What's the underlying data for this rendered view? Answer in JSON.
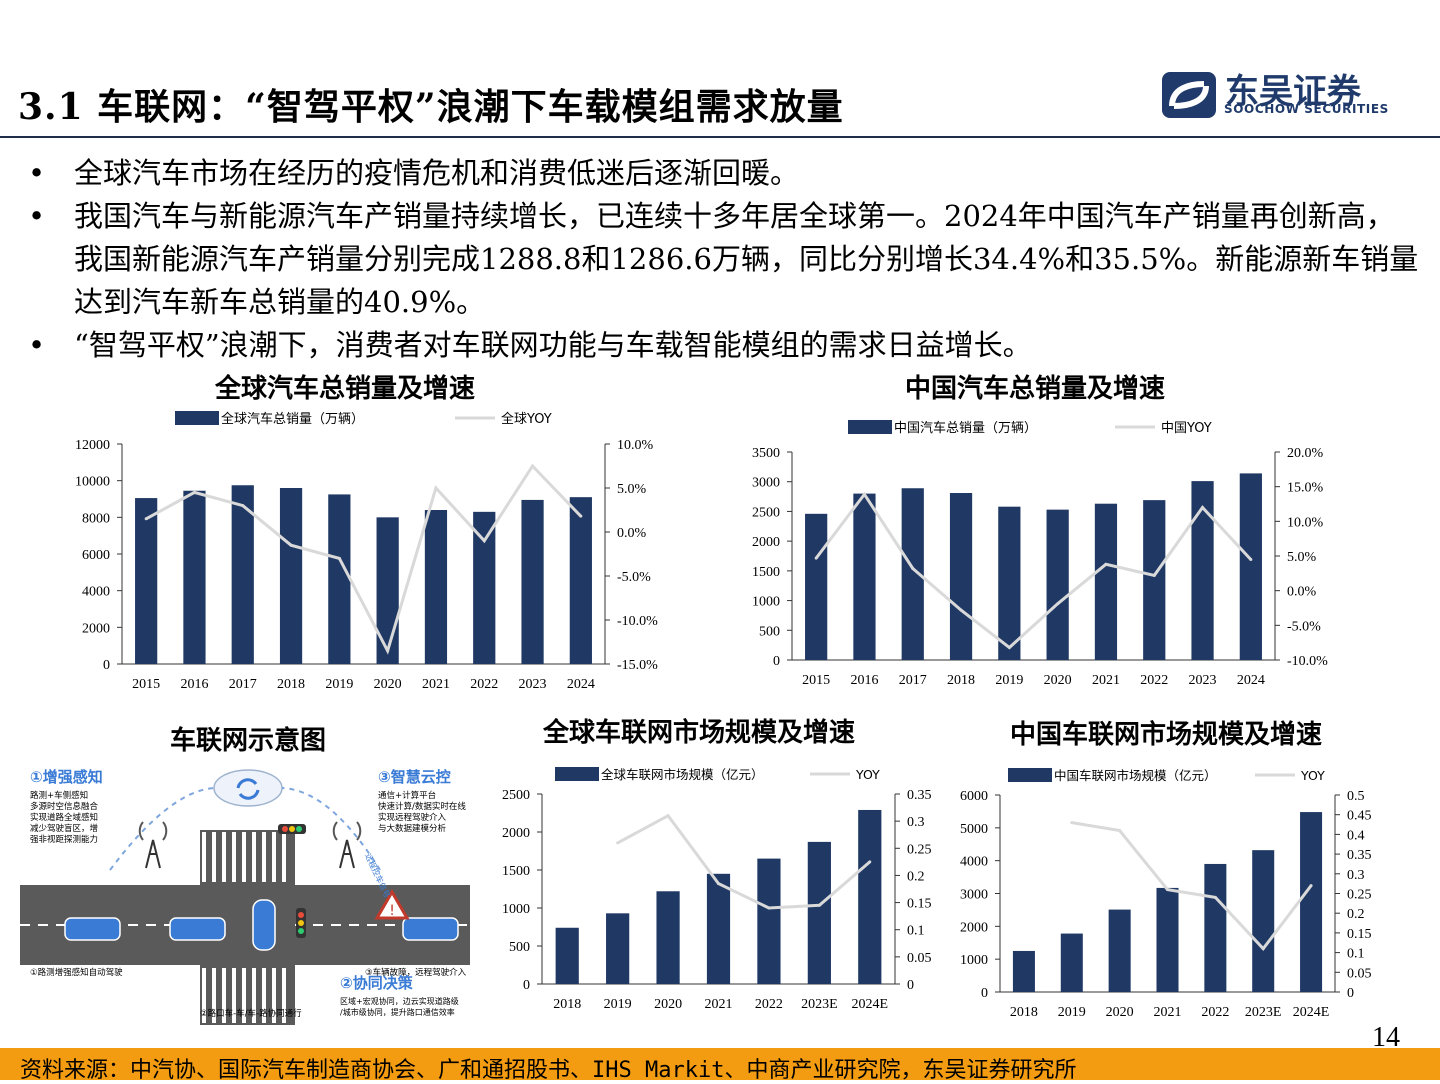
{
  "header": {
    "title": "3.1 车联网：“智驾平权”浪潮下车载模组需求放量",
    "logo_cn": "东吴证券",
    "logo_en": "SOOCHOW SECURITIES"
  },
  "bullets": [
    {
      "symbol": "•",
      "text": "全球汽车市场在经历的疫情危机和消费低迷后逐渐回暖。"
    },
    {
      "symbol": "•",
      "text": "我国汽车与新能源汽车产销量持续增长，已连续十多年居全球第一。2024年中国汽车产销量再创新高，我国新能源汽车产销量分别完成1288.8和1286.6万辆，同比分别增长34.4%和35.5%。新能源新车销量达到汽车新车总销量的40.9%。"
    },
    {
      "symbol": "•",
      "text": "“智驾平权”浪潮下，消费者对车联网功能与车载智能模组的需求日益增长。"
    }
  ],
  "colors": {
    "bar": "#1f3864",
    "line": "#d9d9d9",
    "footer": "#f39c12",
    "brand": "#1f3a6b"
  },
  "chart_data": [
    {
      "type": "bar",
      "title": "全球汽车总销量及增速",
      "categories": [
        "2015",
        "2016",
        "2017",
        "2018",
        "2019",
        "2020",
        "2021",
        "2022",
        "2023",
        "2024"
      ],
      "series": [
        {
          "name": "全球汽车总销量（万辆）",
          "type": "bar",
          "axis": "left",
          "values": [
            9050,
            9450,
            9750,
            9600,
            9250,
            8000,
            8400,
            8300,
            8950,
            9100
          ]
        },
        {
          "name": "全球YOY",
          "type": "line",
          "axis": "right",
          "values": [
            1.5,
            4.5,
            3.0,
            -1.5,
            -3.0,
            -13.5,
            5.0,
            -1.0,
            7.5,
            1.8
          ]
        }
      ],
      "y_left": {
        "min": 0,
        "max": 12000,
        "ticks": [
          "0",
          "2000",
          "4000",
          "6000",
          "8000",
          "10000",
          "12000"
        ]
      },
      "y_right": {
        "min": -15,
        "max": 10,
        "ticks": [
          "-15.0%",
          "-10.0%",
          "-5.0%",
          "0.0%",
          "5.0%",
          "10.0%"
        ]
      }
    },
    {
      "type": "bar",
      "title": "中国汽车总销量及增速",
      "categories": [
        "2015",
        "2016",
        "2017",
        "2018",
        "2019",
        "2020",
        "2021",
        "2022",
        "2023",
        "2024"
      ],
      "series": [
        {
          "name": "中国汽车总销量（万辆）",
          "type": "bar",
          "axis": "left",
          "values": [
            2460,
            2800,
            2890,
            2810,
            2580,
            2530,
            2630,
            2690,
            3010,
            3140
          ]
        },
        {
          "name": "中国YOY",
          "type": "line",
          "axis": "right",
          "values": [
            4.7,
            13.9,
            3.2,
            -2.8,
            -8.2,
            -1.9,
            3.8,
            2.2,
            12.0,
            4.5
          ]
        }
      ],
      "y_left": {
        "min": 0,
        "max": 3500,
        "ticks": [
          "0",
          "500",
          "1000",
          "1500",
          "2000",
          "2500",
          "3000",
          "3500"
        ]
      },
      "y_right": {
        "min": -10,
        "max": 20,
        "ticks": [
          "-10.0%",
          "-5.0%",
          "0.0%",
          "5.0%",
          "10.0%",
          "15.0%",
          "20.0%"
        ]
      }
    },
    {
      "type": "bar",
      "title": "全球车联网市场规模及增速",
      "categories": [
        "2018",
        "2019",
        "2020",
        "2021",
        "2022",
        "2023E",
        "2024E"
      ],
      "series": [
        {
          "name": "全球车联网市场规模（亿元）",
          "type": "bar",
          "axis": "left",
          "values": [
            740,
            930,
            1220,
            1450,
            1650,
            1870,
            2290
          ]
        },
        {
          "name": "YOY",
          "type": "line",
          "axis": "right",
          "values": [
            null,
            0.26,
            0.31,
            0.185,
            0.14,
            0.145,
            0.225
          ]
        }
      ],
      "y_left": {
        "min": 0,
        "max": 2500,
        "ticks": [
          "0",
          "500",
          "1000",
          "1500",
          "2000",
          "2500"
        ]
      },
      "y_right": {
        "min": 0,
        "max": 0.35,
        "ticks": [
          "0",
          "0.05",
          "0.1",
          "0.15",
          "0.2",
          "0.25",
          "0.3",
          "0.35"
        ]
      }
    },
    {
      "type": "bar",
      "title": "中国车联网市场规模及增速",
      "categories": [
        "2018",
        "2019",
        "2020",
        "2021",
        "2022",
        "2023E",
        "2024E"
      ],
      "series": [
        {
          "name": "中国车联网市场规模（亿元）",
          "type": "bar",
          "axis": "left",
          "values": [
            1250,
            1780,
            2510,
            3170,
            3900,
            4320,
            5480
          ]
        },
        {
          "name": "YOY",
          "type": "line",
          "axis": "right",
          "values": [
            null,
            0.43,
            0.41,
            0.26,
            0.24,
            0.11,
            0.27
          ]
        }
      ],
      "y_left": {
        "min": 0,
        "max": 6000,
        "ticks": [
          "0",
          "1000",
          "2000",
          "3000",
          "4000",
          "5000",
          "6000"
        ]
      },
      "y_right": {
        "min": 0,
        "max": 0.5,
        "ticks": [
          "0",
          "0.05",
          "0.1",
          "0.15",
          "0.2",
          "0.25",
          "0.3",
          "0.35",
          "0.4",
          "0.45",
          "0.5"
        ]
      }
    }
  ],
  "diagram": {
    "title": "车联网示意图",
    "boxes": [
      {
        "num": "①",
        "heading": "增强感知",
        "lines": [
          "路测+车侧感知",
          "多源时空信息融合",
          "实现道路全域感知",
          "减少驾驶盲区，增",
          "强非视距探测能力"
        ]
      },
      {
        "num": "③",
        "heading": "智慧云控",
        "lines": [
          "通信+计算平台",
          "快速计算/数据实时在线",
          "实现远程驾驶介入",
          "与大数据建模分析"
        ]
      },
      {
        "num": "②",
        "heading": "协同决策",
        "lines": [
          "区域+宏观协同，边云实现道路级",
          "/城市级协同，提升路口通信效率"
        ]
      }
    ],
    "captions": [
      "①路测增强感知自动驾驶",
      "②路口车-车/车-路协同通行",
      "③车辆故障，远程驾驶介入",
      "远程控车信号"
    ]
  },
  "footer": {
    "source": "资料来源：中汽协、国际汽车制造商协会、广和通招股书、IHS Markit、中商产业研究院，东吴证券研究所",
    "page": "14"
  }
}
